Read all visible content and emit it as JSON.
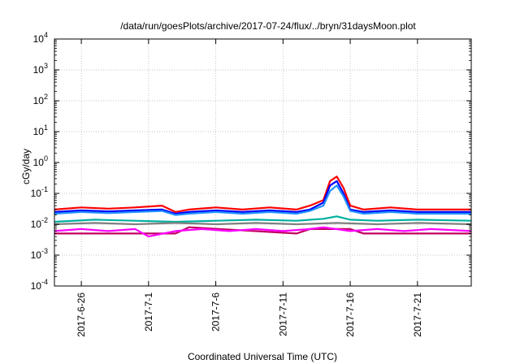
{
  "chart_data": {
    "type": "line",
    "title": "/data/run/goesPlots/archive/2017-07-24/flux/../bryn/31daysMoon.plot",
    "xlabel": "Coordinated Universal Time (UTC)",
    "ylabel": "cGy/day",
    "yscale": "log",
    "ylim": [
      0.0001,
      10000
    ],
    "yticks": [
      {
        "value": 0.0001,
        "base": "10",
        "exp": "-4"
      },
      {
        "value": 0.001,
        "base": "10",
        "exp": "-3"
      },
      {
        "value": 0.01,
        "base": "10",
        "exp": "-2"
      },
      {
        "value": 0.1,
        "base": "10",
        "exp": "-1"
      },
      {
        "value": 1,
        "base": "10",
        "exp": "0"
      },
      {
        "value": 10,
        "base": "10",
        "exp": "1"
      },
      {
        "value": 100,
        "base": "10",
        "exp": "2"
      },
      {
        "value": 1000,
        "base": "10",
        "exp": "3"
      },
      {
        "value": 10000,
        "base": "10",
        "exp": "4"
      }
    ],
    "xlim": [
      "2017-06-24",
      "2017-07-25"
    ],
    "xticks": [
      {
        "date": "2017-06-26",
        "label": "2017-6-26"
      },
      {
        "date": "2017-07-01",
        "label": "2017-7-1"
      },
      {
        "date": "2017-07-06",
        "label": "2017-7-6"
      },
      {
        "date": "2017-07-11",
        "label": "2017-7-11"
      },
      {
        "date": "2017-07-16",
        "label": "2017-7-16"
      },
      {
        "date": "2017-07-21",
        "label": "2017-7-21"
      }
    ],
    "grid": true,
    "series": [
      {
        "color": "#ff0000",
        "x": [
          "2017-06-24",
          "2017-06-26",
          "2017-06-28",
          "2017-06-30",
          "2017-07-02",
          "2017-07-03",
          "2017-07-04",
          "2017-07-06",
          "2017-07-08",
          "2017-07-10",
          "2017-07-12",
          "2017-07-13",
          "2017-07-14",
          "2017-07-14T12:00",
          "2017-07-15",
          "2017-07-15T12:00",
          "2017-07-16",
          "2017-07-17",
          "2017-07-19",
          "2017-07-21",
          "2017-07-23",
          "2017-07-25"
        ],
        "y": [
          0.03,
          0.035,
          0.032,
          0.035,
          0.04,
          0.025,
          0.03,
          0.035,
          0.03,
          0.035,
          0.03,
          0.04,
          0.06,
          0.25,
          0.35,
          0.15,
          0.04,
          0.03,
          0.035,
          0.03,
          0.03,
          0.03
        ]
      },
      {
        "color": "#0000ff",
        "x": [
          "2017-06-24",
          "2017-06-26",
          "2017-06-28",
          "2017-06-30",
          "2017-07-02",
          "2017-07-03",
          "2017-07-04",
          "2017-07-06",
          "2017-07-08",
          "2017-07-10",
          "2017-07-12",
          "2017-07-13",
          "2017-07-14",
          "2017-07-14T12:00",
          "2017-07-15",
          "2017-07-15T12:00",
          "2017-07-16",
          "2017-07-17",
          "2017-07-19",
          "2017-07-21",
          "2017-07-23",
          "2017-07-25"
        ],
        "y": [
          0.025,
          0.028,
          0.026,
          0.028,
          0.03,
          0.022,
          0.025,
          0.028,
          0.025,
          0.028,
          0.025,
          0.03,
          0.05,
          0.18,
          0.25,
          0.1,
          0.03,
          0.025,
          0.028,
          0.025,
          0.025,
          0.025
        ]
      },
      {
        "color": "#1e90ff",
        "x": [
          "2017-06-24",
          "2017-06-26",
          "2017-06-28",
          "2017-06-30",
          "2017-07-02",
          "2017-07-03",
          "2017-07-04",
          "2017-07-06",
          "2017-07-08",
          "2017-07-10",
          "2017-07-12",
          "2017-07-13",
          "2017-07-14",
          "2017-07-14T12:00",
          "2017-07-15",
          "2017-07-15T12:00",
          "2017-07-16",
          "2017-07-17",
          "2017-07-19",
          "2017-07-21",
          "2017-07-23",
          "2017-07-25"
        ],
        "y": [
          0.022,
          0.025,
          0.023,
          0.025,
          0.027,
          0.02,
          0.022,
          0.025,
          0.022,
          0.025,
          0.022,
          0.027,
          0.04,
          0.12,
          0.18,
          0.08,
          0.027,
          0.022,
          0.025,
          0.022,
          0.022,
          0.022
        ]
      },
      {
        "color": "#00b0a0",
        "x": [
          "2017-06-24",
          "2017-06-27",
          "2017-06-30",
          "2017-07-03",
          "2017-07-06",
          "2017-07-09",
          "2017-07-12",
          "2017-07-14",
          "2017-07-15",
          "2017-07-16",
          "2017-07-18",
          "2017-07-21",
          "2017-07-25"
        ],
        "y": [
          0.012,
          0.014,
          0.013,
          0.012,
          0.013,
          0.014,
          0.013,
          0.015,
          0.018,
          0.014,
          0.013,
          0.014,
          0.013
        ]
      },
      {
        "color": "#808080",
        "x": [
          "2017-06-24",
          "2017-06-27",
          "2017-06-30",
          "2017-07-03",
          "2017-07-06",
          "2017-07-09",
          "2017-07-12",
          "2017-07-15",
          "2017-07-18",
          "2017-07-21",
          "2017-07-25"
        ],
        "y": [
          0.01,
          0.011,
          0.01,
          0.011,
          0.01,
          0.011,
          0.01,
          0.011,
          0.01,
          0.011,
          0.01
        ]
      },
      {
        "color": "#c00060",
        "x": [
          "2017-06-24",
          "2017-06-25",
          "2017-07-03",
          "2017-07-04",
          "2017-07-12",
          "2017-07-13",
          "2017-07-16",
          "2017-07-17",
          "2017-07-25"
        ],
        "y": [
          0.005,
          0.005,
          0.005,
          0.008,
          0.005,
          0.007,
          0.007,
          0.005,
          0.005
        ]
      },
      {
        "color": "#ff00ff",
        "x": [
          "2017-06-24",
          "2017-06-26",
          "2017-06-28",
          "2017-06-30",
          "2017-07-01",
          "2017-07-03",
          "2017-07-05",
          "2017-07-07",
          "2017-07-09",
          "2017-07-11",
          "2017-07-13",
          "2017-07-14",
          "2017-07-16",
          "2017-07-18",
          "2017-07-20",
          "2017-07-22",
          "2017-07-25"
        ],
        "y": [
          0.006,
          0.007,
          0.006,
          0.007,
          0.004,
          0.006,
          0.007,
          0.006,
          0.007,
          0.006,
          0.007,
          0.008,
          0.006,
          0.007,
          0.006,
          0.007,
          0.006
        ]
      }
    ]
  }
}
